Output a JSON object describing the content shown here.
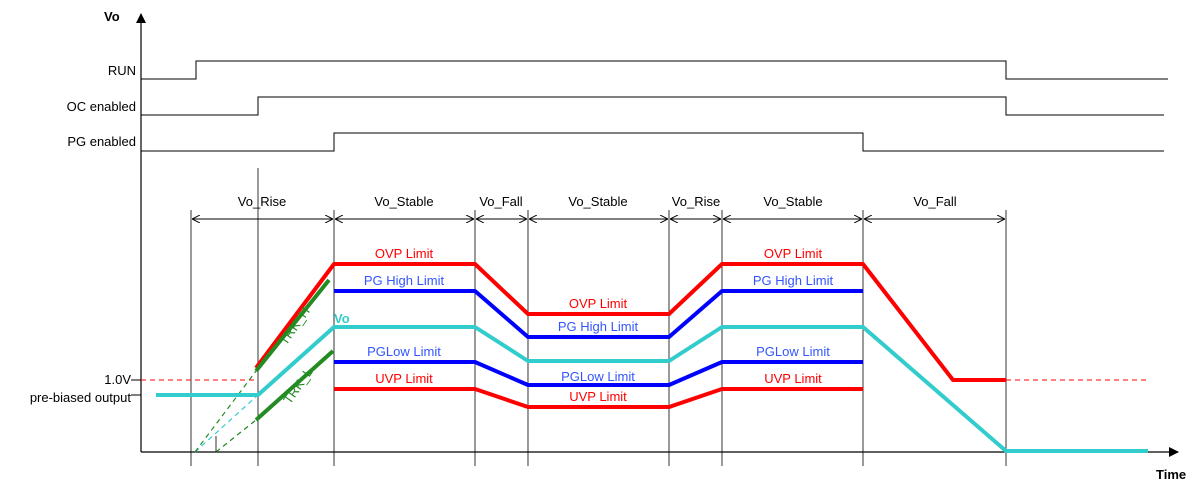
{
  "axes": {
    "y_label": "Vo",
    "x_label": "Time"
  },
  "signals": [
    {
      "label": "RUN"
    },
    {
      "label": "OC enabled"
    },
    {
      "label": "PG enabled"
    }
  ],
  "phases": [
    "Vo_Rise",
    "Vo_Stable",
    "Vo_Fall",
    "Vo_Stable",
    "Vo_Rise",
    "Vo_Stable",
    "Vo_Fall"
  ],
  "levels": {
    "v1": "1.0V",
    "v2": "pre-biased output"
  },
  "traces": {
    "trk_h": "TRK_H",
    "trk_l": "TRK_L",
    "vo": "Vo"
  },
  "limit_labels": {
    "ovp": "OVP Limit",
    "pg_high": "PG High Limit",
    "pg_low": "PGLow Limit",
    "uvp": "UVP Limit"
  },
  "colors": {
    "ovp": "#ff0000",
    "uvp": "#ff0000",
    "pg": "#0000ff",
    "pg_text": "#3355ff",
    "vo": "#33cccc",
    "trk": "#228b22",
    "trk_text": "#228b22",
    "dash_ref": "#ff0000"
  }
}
